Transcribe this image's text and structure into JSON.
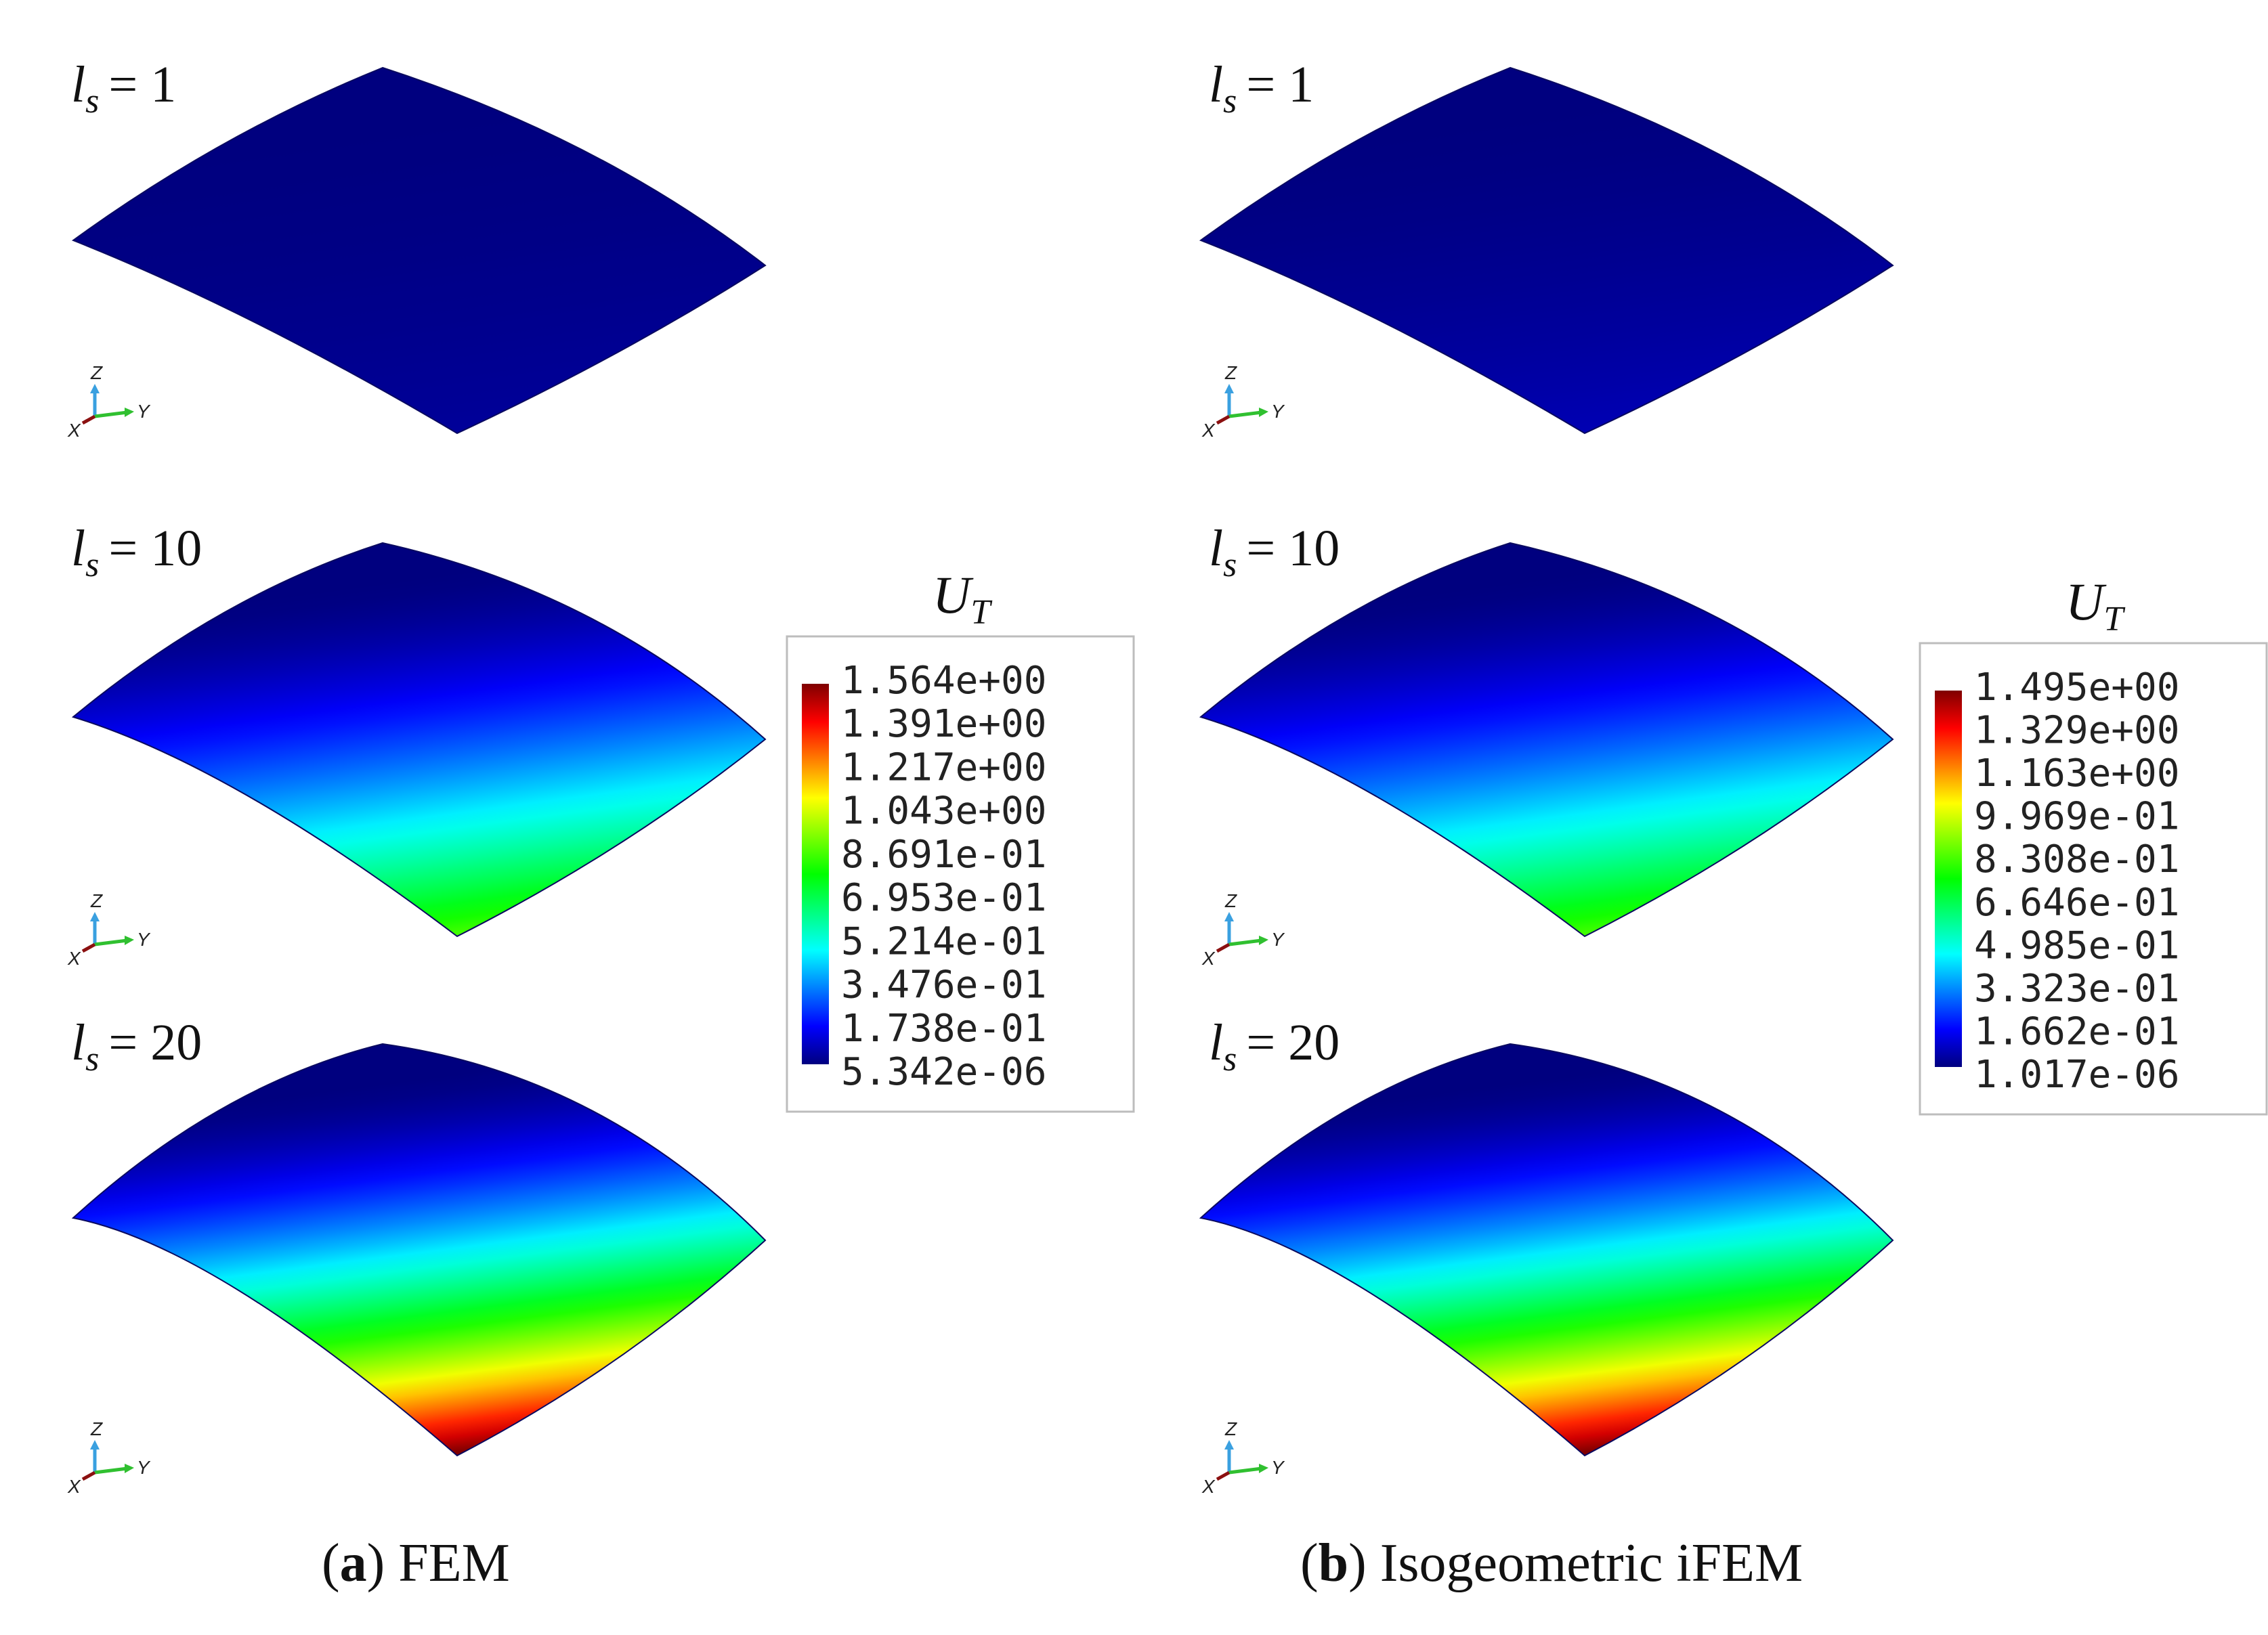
{
  "panels": [
    {
      "id": "a",
      "caption_letter": "a",
      "caption_text": "FEM",
      "legend_symbol": "U",
      "legend_subscript": "T",
      "legend_values": [
        "1.564e+00",
        "1.391e+00",
        "1.217e+00",
        "1.043e+00",
        "8.691e-01",
        "6.953e-01",
        "5.214e-01",
        "3.476e-01",
        "1.738e-01",
        "5.342e-06"
      ],
      "rows": [
        {
          "ls_label": "l",
          "ls_sub": "s",
          "ls_eq": "= 1",
          "level": 0.02
        },
        {
          "ls_label": "l",
          "ls_sub": "s",
          "ls_eq": "= 10",
          "level": 0.55
        },
        {
          "ls_label": "l",
          "ls_sub": "s",
          "ls_eq": "= 20",
          "level": 1.0
        }
      ]
    },
    {
      "id": "b",
      "caption_letter": "b",
      "caption_text": "Isogeometric iFEM",
      "legend_symbol": "U",
      "legend_subscript": "T",
      "legend_values": [
        "1.495e+00",
        "1.329e+00",
        "1.163e+00",
        "9.969e-01",
        "8.308e-01",
        "6.646e-01",
        "4.985e-01",
        "3.323e-01",
        "1.662e-01",
        "1.017e-06"
      ],
      "rows": [
        {
          "ls_label": "l",
          "ls_sub": "s",
          "ls_eq": "= 1",
          "level": 0.04
        },
        {
          "ls_label": "l",
          "ls_sub": "s",
          "ls_eq": "= 10",
          "level": 0.55
        },
        {
          "ls_label": "l",
          "ls_sub": "s",
          "ls_eq": "= 20",
          "level": 1.0
        }
      ]
    }
  ],
  "triad": {
    "z": "Z",
    "x": "X",
    "y": "Y"
  },
  "colormap": [
    "#00007f",
    "#0000ff",
    "#007fff",
    "#00ffff",
    "#00ff7f",
    "#00ff00",
    "#7fff00",
    "#ffff00",
    "#ff7f00",
    "#ff0000",
    "#7f0000"
  ]
}
